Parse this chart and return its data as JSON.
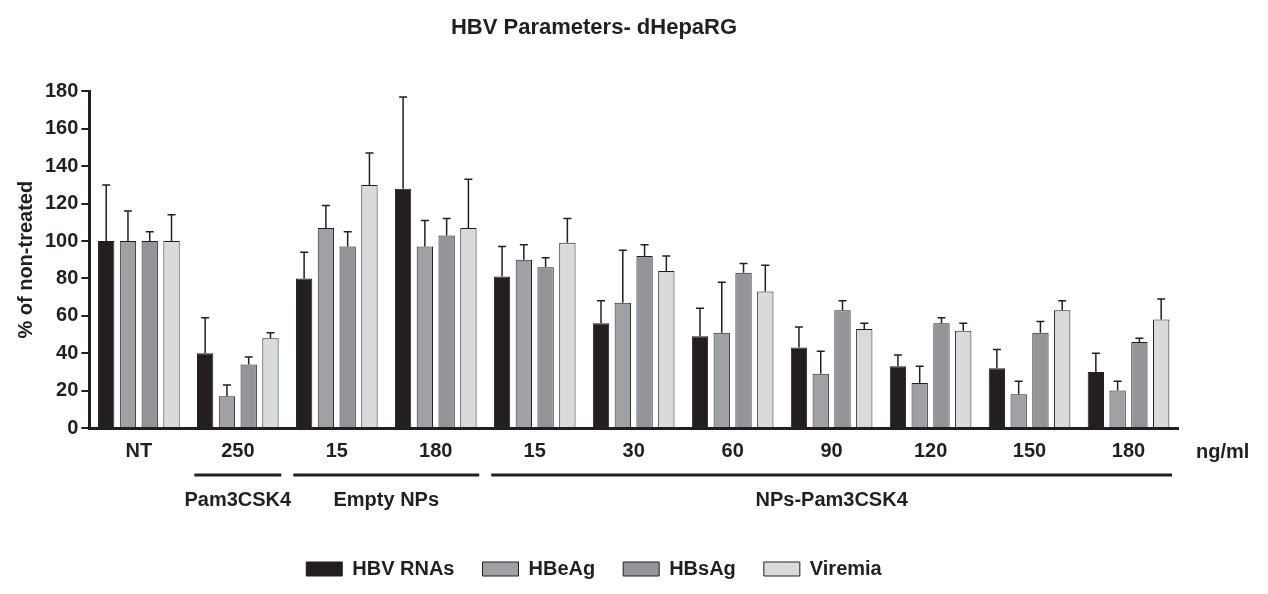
{
  "chart_data": {
    "type": "bar",
    "title": "HBV Parameters- dHepaRG",
    "ylabel": "% of non-treated",
    "xlabel": "ng/ml",
    "categories": [
      "NT",
      "250",
      "15",
      "180",
      "15",
      "30",
      "60",
      "90",
      "120",
      "150",
      "180"
    ],
    "series": [
      {
        "name": "HBV RNAs",
        "color": "#231f20",
        "values": [
          100,
          40,
          80,
          128,
          81,
          56,
          49,
          43,
          33,
          32,
          30
        ],
        "errors": [
          30,
          19,
          14,
          49,
          16,
          12,
          15,
          11,
          6,
          10,
          10
        ]
      },
      {
        "name": "HBeAg",
        "color": "#a0a1a4",
        "values": [
          100,
          17,
          107,
          97,
          90,
          67,
          51,
          29,
          24,
          18,
          20
        ],
        "errors": [
          16,
          6,
          12,
          14,
          8,
          28,
          27,
          12,
          9,
          7,
          5
        ]
      },
      {
        "name": "HBsAg",
        "color": "#939598",
        "values": [
          100,
          34,
          97,
          103,
          86,
          92,
          83,
          63,
          56,
          51,
          46
        ],
        "errors": [
          5,
          4,
          8,
          9,
          5,
          6,
          5,
          5,
          3,
          6,
          2
        ]
      },
      {
        "name": "Viremia",
        "color": "#d9dadb",
        "values": [
          100,
          48,
          130,
          107,
          99,
          84,
          73,
          53,
          52,
          63,
          58
        ],
        "errors": [
          14,
          3,
          17,
          26,
          13,
          8,
          14,
          3,
          4,
          5,
          11
        ]
      }
    ],
    "ylim": [
      0,
      180
    ],
    "yticks": [
      0,
      20,
      40,
      60,
      80,
      100,
      120,
      140,
      160,
      180
    ],
    "annotations": [
      "Pam3CSK4",
      "Empty NPs",
      "NPs-Pam3CSK4"
    ],
    "legend": "bottom",
    "grid": false
  }
}
